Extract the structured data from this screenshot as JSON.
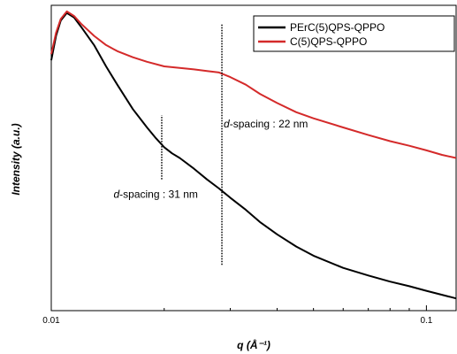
{
  "chart_data": {
    "type": "line",
    "xscale": "log",
    "xlim": [
      0.01,
      0.12
    ],
    "ylim": [
      0,
      1
    ],
    "xlabel": "q (Å⁻¹)",
    "ylabel": "Intensity (a.u.)",
    "xticks": [
      {
        "value": 0.01,
        "label": "0.01"
      },
      {
        "value": 0.1,
        "label": "0.1"
      }
    ],
    "legend_position": "top-right",
    "series": [
      {
        "name": "PErC(5)QPS-QPPO",
        "color": "#000000",
        "points": [
          [
            0.01,
            0.82
          ],
          [
            0.0103,
            0.9
          ],
          [
            0.0106,
            0.95
          ],
          [
            0.011,
            0.975
          ],
          [
            0.0115,
            0.96
          ],
          [
            0.012,
            0.93
          ],
          [
            0.013,
            0.87
          ],
          [
            0.014,
            0.8
          ],
          [
            0.015,
            0.74
          ],
          [
            0.0165,
            0.66
          ],
          [
            0.018,
            0.6
          ],
          [
            0.019,
            0.565
          ],
          [
            0.02,
            0.535
          ],
          [
            0.021,
            0.515
          ],
          [
            0.022,
            0.5
          ],
          [
            0.024,
            0.465
          ],
          [
            0.026,
            0.43
          ],
          [
            0.028,
            0.4
          ],
          [
            0.03,
            0.37
          ],
          [
            0.033,
            0.33
          ],
          [
            0.036,
            0.29
          ],
          [
            0.04,
            0.25
          ],
          [
            0.045,
            0.21
          ],
          [
            0.05,
            0.18
          ],
          [
            0.06,
            0.14
          ],
          [
            0.07,
            0.115
          ],
          [
            0.08,
            0.095
          ],
          [
            0.09,
            0.08
          ],
          [
            0.1,
            0.065
          ],
          [
            0.11,
            0.052
          ],
          [
            0.12,
            0.04
          ]
        ]
      },
      {
        "name": "C(5)QPS-QPPO",
        "color": "#d42a2a",
        "points": [
          [
            0.01,
            0.84
          ],
          [
            0.0103,
            0.91
          ],
          [
            0.0106,
            0.955
          ],
          [
            0.011,
            0.98
          ],
          [
            0.0115,
            0.965
          ],
          [
            0.012,
            0.94
          ],
          [
            0.013,
            0.9
          ],
          [
            0.014,
            0.87
          ],
          [
            0.015,
            0.85
          ],
          [
            0.0165,
            0.83
          ],
          [
            0.018,
            0.815
          ],
          [
            0.02,
            0.8
          ],
          [
            0.022,
            0.795
          ],
          [
            0.024,
            0.79
          ],
          [
            0.026,
            0.785
          ],
          [
            0.028,
            0.78
          ],
          [
            0.03,
            0.765
          ],
          [
            0.033,
            0.74
          ],
          [
            0.036,
            0.71
          ],
          [
            0.04,
            0.68
          ],
          [
            0.045,
            0.65
          ],
          [
            0.05,
            0.63
          ],
          [
            0.06,
            0.6
          ],
          [
            0.07,
            0.575
          ],
          [
            0.08,
            0.555
          ],
          [
            0.09,
            0.54
          ],
          [
            0.1,
            0.525
          ],
          [
            0.11,
            0.51
          ],
          [
            0.12,
            0.5
          ]
        ]
      }
    ],
    "annotations": [
      {
        "id": "d22",
        "italic": "d",
        "rest": "-spacing : 22 nm",
        "line_x": 0.0285,
        "line_y": [
          0.15,
          0.94
        ],
        "text_x": 0.0285,
        "text_y": 0.6
      },
      {
        "id": "d31",
        "italic": "d",
        "rest": "-spacing : 31 nm",
        "line_x": 0.0197,
        "line_y": [
          0.43,
          0.64
        ],
        "text_x": 0.0145,
        "text_y": 0.37
      }
    ]
  }
}
